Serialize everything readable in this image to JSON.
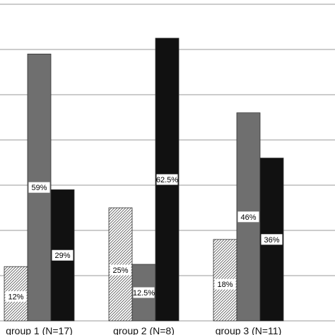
{
  "chart_data": {
    "type": "bar",
    "categories": [
      "group 1 (N=17)",
      "group 2 (N=8)",
      "group 3 (N=11)"
    ],
    "series": [
      {
        "values": [
          12,
          25,
          18
        ],
        "labels": [
          "12%",
          "25%",
          "18%"
        ],
        "color": "#ffffff",
        "pattern": "diagonal-hatch"
      },
      {
        "values": [
          59,
          12.5,
          46
        ],
        "labels": [
          "59%",
          "12.5%",
          "46%"
        ],
        "color": "#6f6f6f",
        "pattern": "solid"
      },
      {
        "values": [
          29,
          62.5,
          36
        ],
        "labels": [
          "29%",
          "62.5%",
          "36%"
        ],
        "color": "#111111",
        "pattern": "solid"
      }
    ],
    "ylim": [
      0,
      70
    ],
    "grid": true,
    "ylabel": "",
    "xlabel": "",
    "title": ""
  }
}
